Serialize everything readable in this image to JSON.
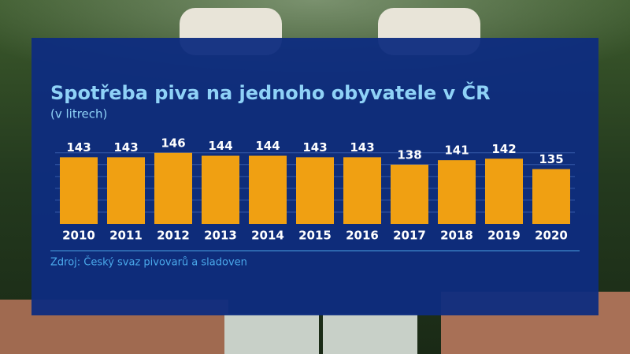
{
  "chart_data": {
    "type": "bar",
    "title": "Spotřeba piva na jednoho obyvatele v ČR",
    "subtitle": "(v litrech)",
    "source": "Zdroj: Český svaz pivovarů a sladoven",
    "categories": [
      "2010",
      "2011",
      "2012",
      "2013",
      "2014",
      "2015",
      "2016",
      "2017",
      "2018",
      "2019",
      "2020"
    ],
    "values": [
      143,
      143,
      146,
      144,
      144,
      143,
      143,
      138,
      141,
      142,
      135
    ],
    "color": "#f0a012",
    "ylim": [
      98,
      148
    ],
    "yticks": [
      106,
      114,
      122,
      130,
      138,
      146
    ],
    "grid": true
  }
}
